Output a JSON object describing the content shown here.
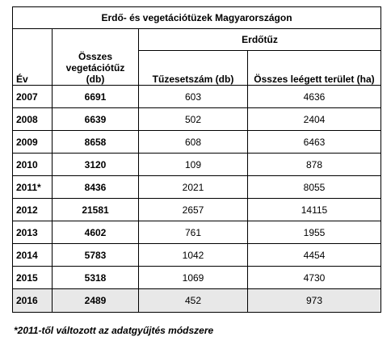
{
  "title": "Erdő- és vegetációtüzek Magyarországon",
  "headers": {
    "year": "Év",
    "total_veg": "Összes vegetációtűz (db)",
    "forest_group": "Erdőtűz",
    "fire_count": "Tűzesetszám (db)",
    "burned_area": "Összes leégett terület (ha)"
  },
  "rows": [
    {
      "year": "2007",
      "total": "6691",
      "count": "603",
      "area": "4636"
    },
    {
      "year": "2008",
      "total": "6639",
      "count": "502",
      "area": "2404"
    },
    {
      "year": "2009",
      "total": "8658",
      "count": "608",
      "area": "6463"
    },
    {
      "year": "2010",
      "total": "3120",
      "count": "109",
      "area": "878"
    },
    {
      "year": "2011*",
      "total": "8436",
      "count": "2021",
      "area": "8055"
    },
    {
      "year": "2012",
      "total": "21581",
      "count": "2657",
      "area": "14115"
    },
    {
      "year": "2013",
      "total": "4602",
      "count": "761",
      "area": "1955"
    },
    {
      "year": "2014",
      "total": "5783",
      "count": "1042",
      "area": "4454"
    },
    {
      "year": "2015",
      "total": "5318",
      "count": "1069",
      "area": "4730"
    },
    {
      "year": "2016",
      "total": "2489",
      "count": "452",
      "area": "973"
    }
  ],
  "footnote": "*2011-től változott az adatgyűjtés módszere",
  "colors": {
    "last_row_bg": "#e8e8e8",
    "border": "#000000"
  }
}
